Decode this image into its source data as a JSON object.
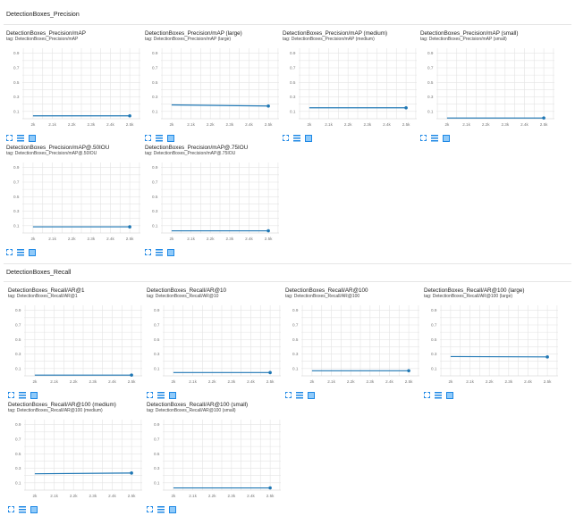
{
  "sections": [
    {
      "title": "DetectionBoxes_Precision",
      "charts": [
        {
          "title": "DetectionBoxes_Precision/mAP",
          "tag": "tag: DetectionBoxes_Precision/mAP",
          "values": [
            [
              2000,
              0.04
            ],
            [
              2500,
              0.04
            ]
          ]
        },
        {
          "title": "DetectionBoxes_Precision/mAP (large)",
          "tag": "tag: DetectionBoxes_Precision/mAP (large)",
          "values": [
            [
              2000,
              0.19
            ],
            [
              2500,
              0.175
            ]
          ]
        },
        {
          "title": "DetectionBoxes_Precision/mAP (medium)",
          "tag": "tag: DetectionBoxes_Precision/mAP (medium)",
          "values": [
            [
              2000,
              0.15
            ],
            [
              2500,
              0.15
            ]
          ]
        },
        {
          "title": "DetectionBoxes_Precision/mAP (small)",
          "tag": "tag: DetectionBoxes_Precision/mAP (small)",
          "values": [
            [
              2000,
              0.01
            ],
            [
              2500,
              0.01
            ]
          ]
        },
        {
          "title": "DetectionBoxes_Precision/mAP@.50IOU",
          "tag": "tag: DetectionBoxes_Precision/mAP@.50IOU",
          "values": [
            [
              2000,
              0.085
            ],
            [
              2500,
              0.085
            ]
          ]
        },
        {
          "title": "DetectionBoxes_Precision/mAP@.75IOU",
          "tag": "tag: DetectionBoxes_Precision/mAP@.75IOU",
          "values": [
            [
              2000,
              0.03
            ],
            [
              2500,
              0.03
            ]
          ]
        }
      ]
    },
    {
      "title": "DetectionBoxes_Recall",
      "charts": [
        {
          "title": "DetectionBoxes_Recall/AR@1",
          "tag": "tag: DetectionBoxes_Recall/AR@1",
          "values": [
            [
              2000,
              0.01
            ],
            [
              2500,
              0.01
            ]
          ]
        },
        {
          "title": "DetectionBoxes_Recall/AR@10",
          "tag": "tag: DetectionBoxes_Recall/AR@10",
          "values": [
            [
              2000,
              0.045
            ],
            [
              2500,
              0.045
            ]
          ]
        },
        {
          "title": "DetectionBoxes_Recall/AR@100",
          "tag": "tag: DetectionBoxes_Recall/AR@100",
          "values": [
            [
              2000,
              0.07
            ],
            [
              2500,
              0.07
            ]
          ]
        },
        {
          "title": "DetectionBoxes_Recall/AR@100 (large)",
          "tag": "tag: DetectionBoxes_Recall/AR@100 (large)",
          "values": [
            [
              2000,
              0.265
            ],
            [
              2500,
              0.26
            ]
          ]
        },
        {
          "title": "DetectionBoxes_Recall/AR@100 (medium)",
          "tag": "tag: DetectionBoxes_Recall/AR@100 (medium)",
          "values": [
            [
              2000,
              0.225
            ],
            [
              2500,
              0.235
            ]
          ]
        },
        {
          "title": "DetectionBoxes_Recall/AR@100 (small)",
          "tag": "tag: DetectionBoxes_Recall/AR@100 (small)",
          "values": [
            [
              2000,
              0.03
            ],
            [
              2500,
              0.03
            ]
          ]
        }
      ]
    }
  ],
  "chart_data": {
    "type": "line",
    "xlim": [
      1945,
      2555
    ],
    "ylim": [
      0,
      0.97
    ],
    "xticks": [
      "2k",
      "2.1k",
      "2.2k",
      "2.3k",
      "2.4k",
      "2.5k"
    ],
    "yticks": [
      "0.1",
      "0.3",
      "0.5",
      "0.7",
      "0.9"
    ],
    "grid": true,
    "line_color": "#1f77b4"
  },
  "icons": [
    "expand-icon",
    "toggle-log-scale-icon",
    "fit-domain-icon"
  ]
}
